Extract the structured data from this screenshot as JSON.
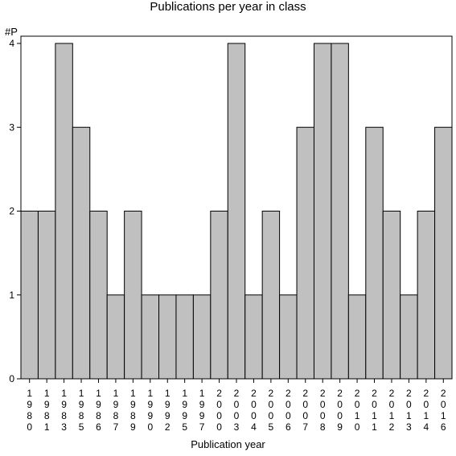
{
  "chart_data": {
    "type": "bar",
    "title": "Publications per year in class",
    "ylabel": "#P",
    "xlabel": "Publication year",
    "categories": [
      "1980",
      "1981",
      "1983",
      "1985",
      "1986",
      "1987",
      "1989",
      "1990",
      "1992",
      "1995",
      "1997",
      "2000",
      "2003",
      "2004",
      "2005",
      "2006",
      "2007",
      "2008",
      "2009",
      "2010",
      "2011",
      "2012",
      "2013",
      "2014",
      "2016"
    ],
    "values": [
      2,
      2,
      4,
      3,
      2,
      1,
      2,
      1,
      1,
      1,
      1,
      2,
      4,
      1,
      2,
      1,
      3,
      4,
      4,
      1,
      3,
      2,
      1,
      2,
      3
    ],
    "ylim": [
      0,
      4
    ],
    "yticks": [
      0,
      1,
      2,
      3,
      4
    ],
    "grid": false,
    "bar_color": "#c0c0c0",
    "edge_color": "#000000"
  }
}
